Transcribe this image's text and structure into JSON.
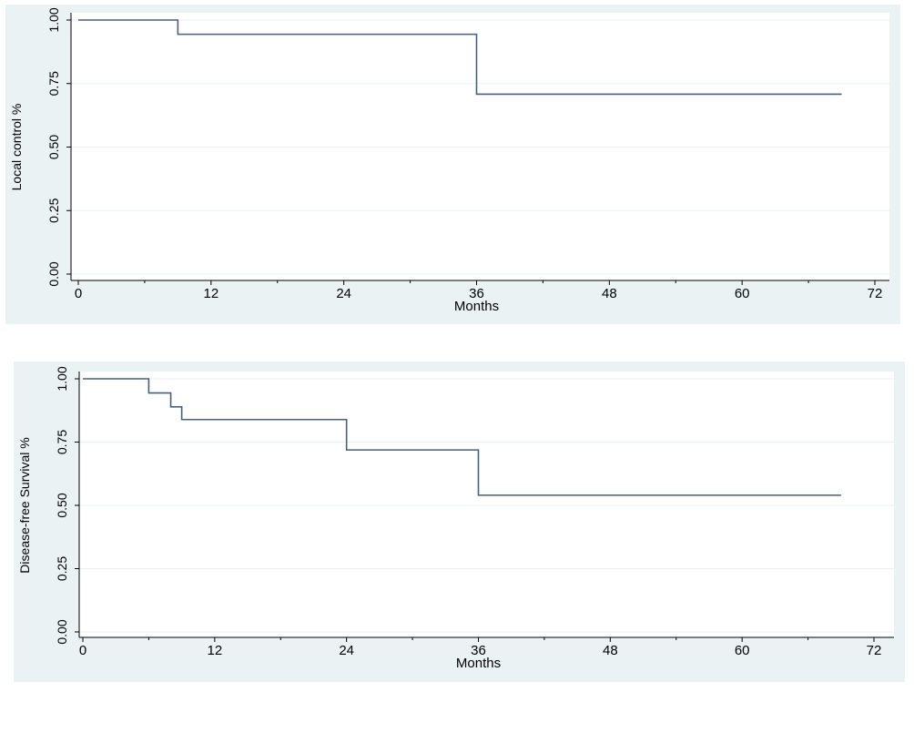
{
  "chart_data": [
    {
      "type": "line",
      "step": true,
      "title": "",
      "xlabel": "Months",
      "ylabel": "Local control %",
      "xlim": [
        0,
        72
      ],
      "ylim": [
        0,
        1
      ],
      "xticks": [
        "0",
        "12",
        "24",
        "36",
        "48",
        "60",
        "72"
      ],
      "yticks": [
        "0.00",
        "0.25",
        "0.50",
        "0.75",
        "1.00"
      ],
      "grid": true,
      "series": [
        {
          "color": "#4a5f7a",
          "x": [
            0,
            9,
            9,
            36,
            36,
            69
          ],
          "y": [
            1.0,
            1.0,
            0.944,
            0.944,
            0.708,
            0.708
          ]
        }
      ]
    },
    {
      "type": "line",
      "step": true,
      "title": "",
      "xlabel": "Months",
      "ylabel": "Disease-free Survival %",
      "xlim": [
        0,
        72
      ],
      "ylim": [
        0,
        1
      ],
      "xticks": [
        "0",
        "12",
        "24",
        "36",
        "48",
        "60",
        "72"
      ],
      "yticks": [
        "0.00",
        "0.25",
        "0.50",
        "0.75",
        "1.00"
      ],
      "grid": true,
      "series": [
        {
          "color": "#4a5f7a",
          "x": [
            0,
            6,
            6,
            8,
            8,
            9,
            9,
            24,
            24,
            36,
            36,
            69
          ],
          "y": [
            1.0,
            1.0,
            0.944,
            0.944,
            0.889,
            0.889,
            0.839,
            0.839,
            0.719,
            0.719,
            0.54,
            0.54
          ]
        }
      ]
    }
  ],
  "colors": {
    "panel_background": "#eaf2f3",
    "plot_background": "#ffffff",
    "grid": "#eaf2f3",
    "series": "#4a5f7a"
  }
}
